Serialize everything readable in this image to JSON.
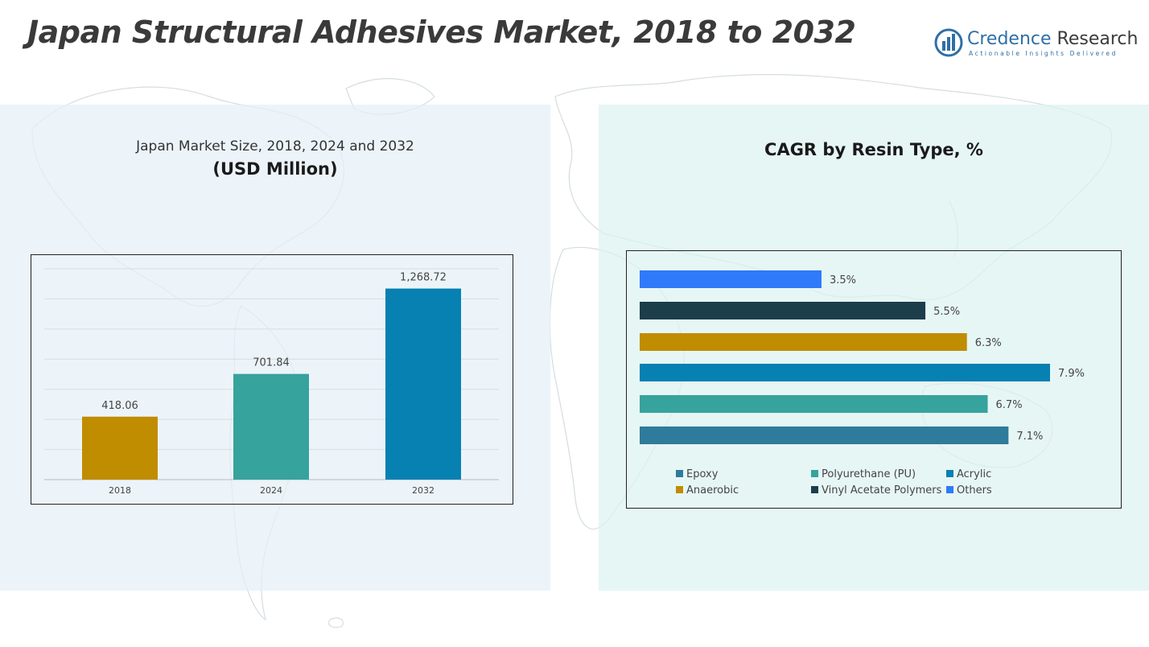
{
  "header": {
    "title": "Japan Structural Adhesives Market, 2018 to 2032",
    "logo": {
      "name_part1": "Credence",
      "name_part2": "Research",
      "tagline": "Actionable Insights Delivered"
    }
  },
  "left_panel": {
    "subtitle": "Japan Market Size, 2018, 2024 and 2032",
    "unit_label": "(USD Million)"
  },
  "right_panel": {
    "title": "CAGR by Resin Type, %"
  },
  "colors": {
    "accent_text": "#3a3a3a",
    "brand_blue": "#2f6fa7"
  },
  "chart_data": [
    {
      "type": "bar",
      "categories": [
        "2018",
        "2024",
        "2032"
      ],
      "values": [
        418.06,
        701.84,
        1268.72
      ],
      "value_labels": [
        "418.06",
        "701.84",
        "1,268.72"
      ],
      "colors": [
        "#c08c00",
        "#36a39d",
        "#0780b2"
      ],
      "ylim": [
        0,
        1400
      ],
      "grid": true
    },
    {
      "type": "bar",
      "orientation": "horizontal",
      "categories": [
        "Others",
        "Vinyl Acetate Polymers",
        "Anaerobic",
        "Acrylic",
        "Polyurethane (PU)",
        "Epoxy"
      ],
      "values": [
        3.5,
        5.5,
        6.3,
        7.9,
        6.7,
        7.1
      ],
      "value_labels": [
        "3.5%",
        "5.5%",
        "6.3%",
        "7.9%",
        "6.7%",
        "7.1%"
      ],
      "colors": [
        "#2f79fb",
        "#1c3d4a",
        "#c08c00",
        "#0780b2",
        "#36a39d",
        "#2f7b9b"
      ],
      "xlim": [
        0,
        8.2
      ],
      "legend": {
        "position": "bottom",
        "items": [
          {
            "label": "Epoxy",
            "color": "#2f7b9b"
          },
          {
            "label": "Polyurethane (PU)",
            "color": "#36a39d"
          },
          {
            "label": "Acrylic",
            "color": "#0780b2"
          },
          {
            "label": "Anaerobic",
            "color": "#c08c00"
          },
          {
            "label": "Vinyl Acetate Polymers",
            "color": "#1c3d4a"
          },
          {
            "label": "Others",
            "color": "#2f79fb"
          }
        ]
      }
    }
  ]
}
